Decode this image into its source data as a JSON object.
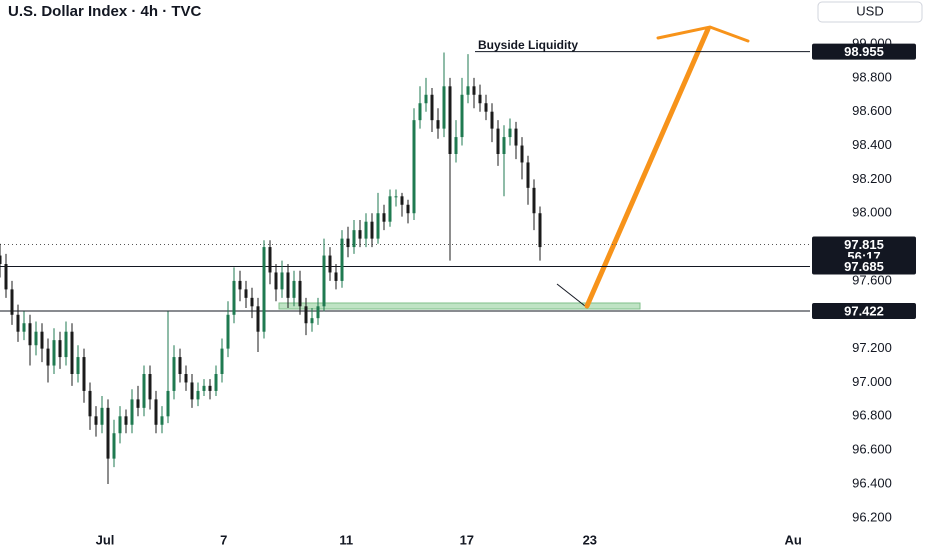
{
  "chart_data": {
    "type": "candlestick",
    "title": "U.S. Dollar Index · 4h · TVC",
    "currency": "USD",
    "countdown": "56:17",
    "up_color": "#1f7a50",
    "down_color": "#1b1b1b",
    "grid": false,
    "xlim": [
      0,
      135
    ],
    "ylim": [
      96.01,
      99.26
    ],
    "xticks": [
      {
        "value": 17.5,
        "label": "Jul"
      },
      {
        "value": 37.3,
        "label": "7"
      },
      {
        "value": 57.7,
        "label": "11"
      },
      {
        "value": 77.8,
        "label": "17"
      },
      {
        "value": 98.3,
        "label": "23"
      },
      {
        "value": 132.2,
        "label": "Au"
      }
    ],
    "yticks": [
      {
        "value": 99,
        "label": "99.000"
      },
      {
        "value": 98.8,
        "label": "98.800"
      },
      {
        "value": 98.6,
        "label": "98.600"
      },
      {
        "value": 98.4,
        "label": "98.400"
      },
      {
        "value": 98.2,
        "label": "98.200"
      },
      {
        "value": 98,
        "label": "98.000"
      },
      {
        "value": 97.6,
        "label": "97.600"
      },
      {
        "value": 97.2,
        "label": "97.200"
      },
      {
        "value": 97,
        "label": "97.000"
      },
      {
        "value": 96.8,
        "label": "96.800"
      },
      {
        "value": 96.6,
        "label": "96.600"
      },
      {
        "value": 96.4,
        "label": "96.400"
      },
      {
        "value": 96.2,
        "label": "96.200"
      }
    ],
    "annotation": {
      "text": "Buyside Liquidity",
      "value": 98.955
    },
    "last_price": 97.815,
    "price_lines": [
      97.685,
      97.422
    ],
    "open": [
      97.75,
      97.7,
      97.55,
      97.4,
      97.3,
      97.35,
      97.22,
      97.3,
      97.2,
      97.1,
      97.25,
      97.15,
      97.3,
      97.05,
      97.15,
      96.95,
      96.8,
      96.75,
      96.85,
      96.55,
      96.7,
      96.8,
      96.75,
      96.9,
      96.85,
      97.05,
      96.9,
      96.75,
      96.8,
      96.95,
      97.15,
      97.05,
      97.0,
      96.9,
      96.95,
      96.98,
      96.95,
      97.05,
      97.2,
      97.4,
      97.6,
      97.55,
      97.5,
      97.45,
      97.3,
      97.8,
      97.65,
      97.55,
      97.65,
      97.5,
      97.6,
      97.45,
      97.35,
      97.38,
      97.45,
      97.75,
      97.65,
      97.6,
      97.85,
      97.8,
      97.9,
      97.85,
      97.95,
      97.85,
      98.0,
      97.95,
      98.1,
      98.1,
      98.05,
      98.0,
      98.55,
      98.65,
      98.7,
      98.55,
      98.5,
      98.75,
      98.35,
      98.45,
      98.7,
      98.75,
      98.7,
      98.65,
      98.6,
      98.5,
      98.35,
      98.45,
      98.5,
      98.4,
      98.3,
      98.15,
      98.0
    ],
    "high": [
      97.82,
      97.76,
      97.6,
      97.46,
      97.42,
      97.4,
      97.36,
      97.35,
      97.26,
      97.32,
      97.3,
      97.36,
      97.35,
      97.22,
      97.2,
      97.0,
      96.86,
      96.92,
      96.9,
      96.78,
      96.86,
      96.84,
      96.96,
      96.98,
      97.1,
      97.1,
      96.95,
      96.86,
      97.42,
      97.22,
      97.2,
      97.1,
      97.05,
      97.0,
      97.02,
      97.02,
      97.1,
      97.26,
      97.48,
      97.68,
      97.66,
      97.6,
      97.56,
      97.5,
      97.84,
      97.84,
      97.7,
      97.72,
      97.7,
      97.66,
      97.66,
      97.5,
      97.44,
      97.5,
      97.85,
      97.8,
      97.7,
      97.9,
      97.92,
      97.96,
      97.96,
      98.0,
      98.0,
      98.12,
      98.05,
      98.14,
      98.14,
      98.12,
      98.08,
      98.62,
      98.75,
      98.8,
      98.74,
      98.62,
      98.95,
      98.8,
      98.55,
      98.8,
      98.94,
      98.8,
      98.76,
      98.7,
      98.65,
      98.55,
      98.52,
      98.56,
      98.54,
      98.45,
      98.34,
      98.2,
      98.04
    ],
    "low": [
      97.62,
      97.5,
      97.34,
      97.24,
      97.25,
      97.1,
      97.16,
      97.12,
      97.0,
      97.05,
      97.08,
      97.1,
      96.98,
      97.0,
      96.88,
      96.72,
      96.68,
      96.7,
      96.4,
      96.5,
      96.64,
      96.7,
      96.7,
      96.8,
      96.8,
      96.84,
      96.7,
      96.7,
      96.76,
      96.9,
      97.0,
      96.95,
      96.85,
      96.86,
      96.92,
      96.9,
      96.92,
      97.0,
      97.15,
      97.35,
      97.48,
      97.44,
      97.38,
      97.18,
      97.26,
      97.58,
      97.48,
      97.5,
      97.44,
      97.45,
      97.4,
      97.28,
      97.3,
      97.34,
      97.42,
      97.6,
      97.55,
      97.56,
      97.74,
      97.76,
      97.8,
      97.8,
      97.8,
      97.82,
      97.9,
      97.92,
      98.04,
      97.98,
      97.94,
      97.96,
      98.5,
      98.6,
      98.48,
      98.44,
      98.45,
      97.72,
      98.3,
      98.4,
      98.65,
      98.62,
      98.6,
      98.55,
      98.42,
      98.28,
      98.1,
      98.4,
      98.32,
      98.2,
      98.05,
      97.9,
      97.72
    ],
    "close": [
      97.7,
      97.55,
      97.4,
      97.3,
      97.35,
      97.22,
      97.3,
      97.2,
      97.1,
      97.25,
      97.15,
      97.3,
      97.05,
      97.15,
      96.95,
      96.8,
      96.75,
      96.85,
      96.55,
      96.7,
      96.8,
      96.75,
      96.9,
      96.85,
      97.05,
      96.9,
      96.75,
      96.8,
      96.95,
      97.15,
      97.05,
      97.0,
      96.9,
      96.95,
      96.98,
      96.95,
      97.05,
      97.2,
      97.4,
      97.6,
      97.55,
      97.5,
      97.45,
      97.3,
      97.8,
      97.65,
      97.55,
      97.65,
      97.5,
      97.6,
      97.45,
      97.35,
      97.38,
      97.45,
      97.75,
      97.65,
      97.6,
      97.85,
      97.8,
      97.9,
      97.85,
      97.95,
      97.85,
      98.0,
      97.95,
      98.1,
      98.1,
      98.05,
      98.0,
      98.55,
      98.65,
      98.7,
      98.55,
      98.5,
      98.75,
      98.35,
      98.45,
      98.7,
      98.75,
      98.7,
      98.65,
      98.6,
      98.5,
      98.35,
      98.45,
      98.5,
      98.4,
      98.3,
      98.15,
      98.0,
      97.8
    ]
  }
}
